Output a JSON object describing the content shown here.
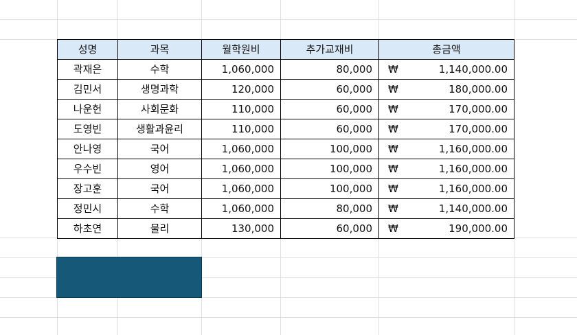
{
  "sheet": {
    "headers": [
      "성명",
      "과목",
      "월학원비",
      "추가교재비",
      "총금액"
    ],
    "currency_symbol": "₩",
    "rows": [
      {
        "name": "곽재은",
        "subject": "수학",
        "tuition": "1,060,000",
        "materials": "80,000",
        "total": "1,140,000.00"
      },
      {
        "name": "김민서",
        "subject": "생명과학",
        "tuition": "120,000",
        "materials": "60,000",
        "total": "180,000.00"
      },
      {
        "name": "나운헌",
        "subject": "사회문화",
        "tuition": "110,000",
        "materials": "60,000",
        "total": "170,000.00"
      },
      {
        "name": "도영빈",
        "subject": "생활과윤리",
        "tuition": "110,000",
        "materials": "60,000",
        "total": "170,000.00"
      },
      {
        "name": "안나영",
        "subject": "국어",
        "tuition": "1,060,000",
        "materials": "100,000",
        "total": "1,160,000.00"
      },
      {
        "name": "우수빈",
        "subject": "영어",
        "tuition": "1,060,000",
        "materials": "100,000",
        "total": "1,160,000.00"
      },
      {
        "name": "장고훈",
        "subject": "국어",
        "tuition": "1,060,000",
        "materials": "100,000",
        "total": "1,160,000.00"
      },
      {
        "name": "정민시",
        "subject": "수학",
        "tuition": "1,060,000",
        "materials": "80,000",
        "total": "1,140,000.00"
      },
      {
        "name": "하초연",
        "subject": "물리",
        "tuition": "130,000",
        "materials": "60,000",
        "total": "190,000.00"
      }
    ]
  },
  "colors": {
    "header_fill": "#dae9f8",
    "shape_fill": "#155877",
    "gridline": "#e1e1e1"
  }
}
